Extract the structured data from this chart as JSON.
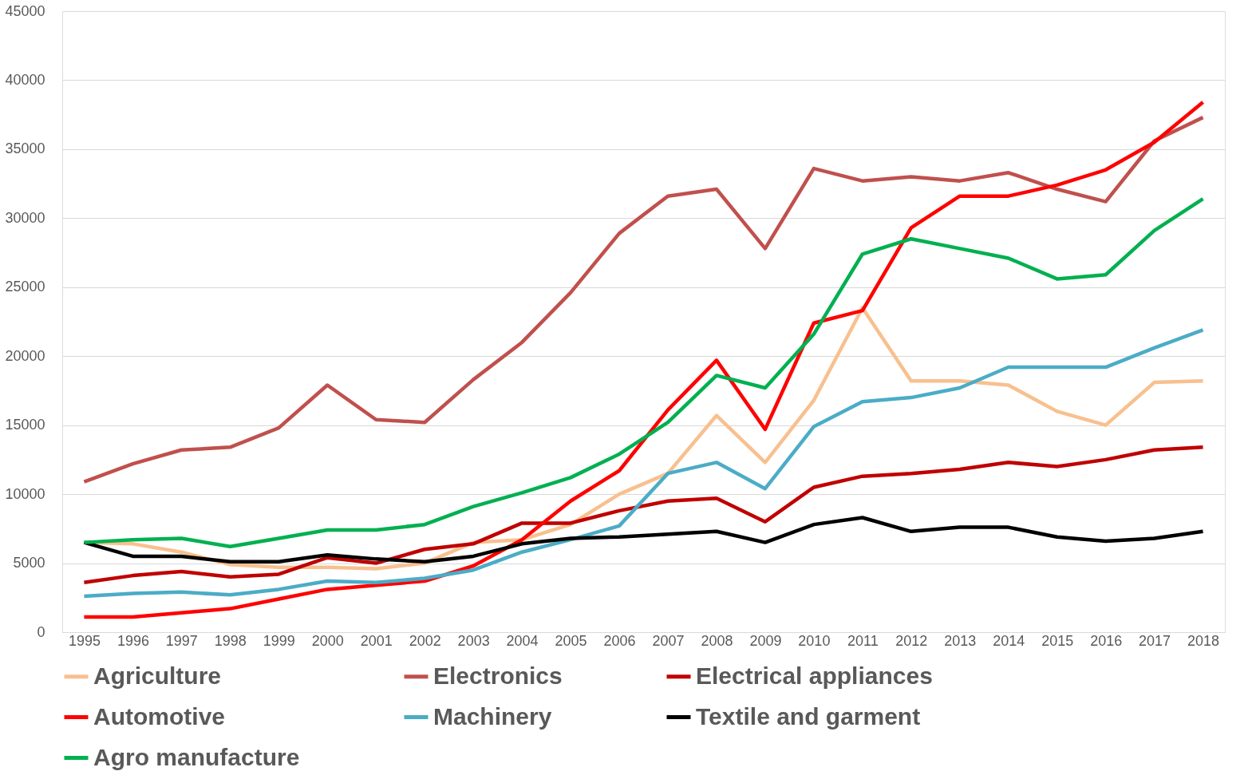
{
  "chart_data": {
    "type": "line",
    "categories": [
      "1995",
      "1996",
      "1997",
      "1998",
      "1999",
      "2000",
      "2001",
      "2002",
      "2003",
      "2004",
      "2005",
      "2006",
      "2007",
      "2008",
      "2009",
      "2010",
      "2011",
      "2012",
      "2013",
      "2014",
      "2015",
      "2016",
      "2017",
      "2018"
    ],
    "series": [
      {
        "name": "Agriculture",
        "color": "#f8c08f",
        "values": [
          6500,
          6400,
          5800,
          4900,
          4700,
          4700,
          4600,
          5000,
          6500,
          6700,
          7800,
          10000,
          11500,
          15700,
          12300,
          16800,
          23500,
          18200,
          18200,
          17900,
          16000,
          15000,
          18100,
          18200
        ]
      },
      {
        "name": "Electronics",
        "color": "#c0504d",
        "values": [
          10900,
          12200,
          13200,
          13400,
          14800,
          17900,
          15400,
          15200,
          18300,
          21000,
          24600,
          28900,
          31600,
          32100,
          27800,
          33600,
          32700,
          33000,
          32700,
          33300,
          32100,
          31200,
          35600,
          37300
        ]
      },
      {
        "name": "Electrical appliances",
        "color": "#c00000",
        "values": [
          3600,
          4100,
          4400,
          4000,
          4200,
          5400,
          5000,
          6000,
          6400,
          7900,
          7900,
          8800,
          9500,
          9700,
          8000,
          10500,
          11300,
          11500,
          11800,
          12300,
          12000,
          12500,
          13200,
          13400
        ]
      },
      {
        "name": "Automotive",
        "color": "#ff0000",
        "values": [
          1100,
          1100,
          1400,
          1700,
          2400,
          3100,
          3400,
          3700,
          4800,
          6700,
          9500,
          11700,
          16100,
          19700,
          14700,
          22400,
          23300,
          29300,
          31600,
          31600,
          32400,
          33500,
          35500,
          38400
        ]
      },
      {
        "name": "Machinery",
        "color": "#4bacc6",
        "values": [
          2600,
          2800,
          2900,
          2700,
          3100,
          3700,
          3600,
          3900,
          4500,
          5800,
          6700,
          7700,
          11500,
          12300,
          10400,
          14900,
          16700,
          17000,
          17700,
          19200,
          19200,
          19200,
          20600,
          21900
        ]
      },
      {
        "name": "Textile and garment",
        "color": "#000000",
        "values": [
          6500,
          5500,
          5500,
          5100,
          5100,
          5600,
          5300,
          5100,
          5500,
          6400,
          6800,
          6900,
          7100,
          7300,
          6500,
          7800,
          8300,
          7300,
          7600,
          7600,
          6900,
          6600,
          6800,
          7300
        ]
      },
      {
        "name": "Agro manufacture",
        "color": "#00b050",
        "values": [
          6500,
          6700,
          6800,
          6200,
          6800,
          7400,
          7400,
          7800,
          9100,
          10100,
          11200,
          12900,
          15200,
          18600,
          17700,
          21600,
          27400,
          28500,
          27800,
          27100,
          25600,
          25900,
          29100,
          31400
        ]
      }
    ],
    "ylim": [
      0,
      45000
    ],
    "yticks": [
      0,
      5000,
      10000,
      15000,
      20000,
      25000,
      30000,
      35000,
      40000,
      45000
    ],
    "grid": "y",
    "legend": "bottom",
    "marker": "none",
    "line_style": "solid"
  }
}
